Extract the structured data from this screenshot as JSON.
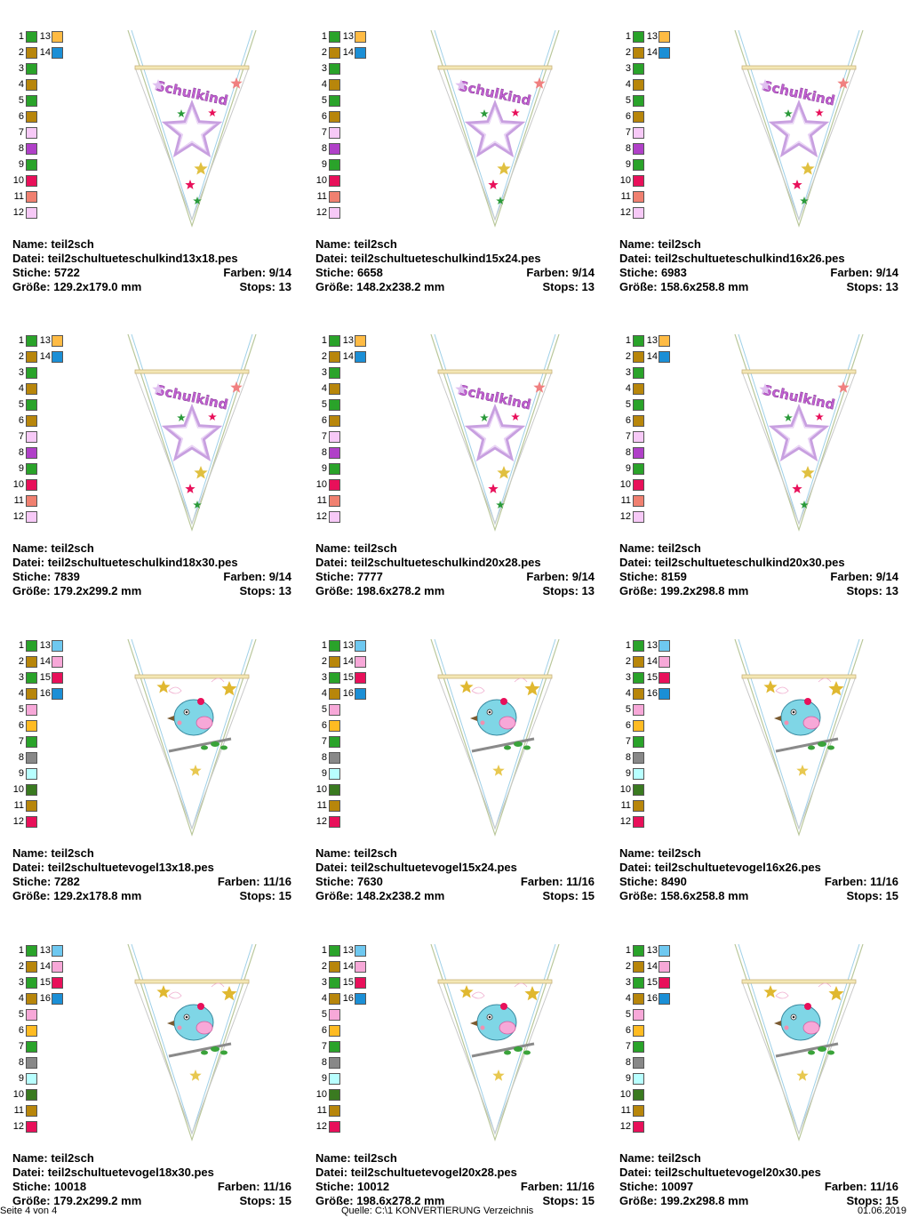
{
  "palettes": {
    "schulkind": {
      "left": [
        "#2aa32a",
        "#b8860b",
        "#2aa32a",
        "#b8860b",
        "#2aa32a",
        "#b8860b",
        "#f7c9f7",
        "#b040c8",
        "#2aa32a",
        "#e8105a",
        "#f08070",
        "#f7c9f7"
      ],
      "right": [
        "#ffbb44",
        "#1b8fd6"
      ]
    },
    "vogel": {
      "left": [
        "#2aa32a",
        "#b8860b",
        "#2aa32a",
        "#b8860b",
        "#f7a8d8",
        "#ffbb22",
        "#2aa32a",
        "#888888",
        "#b8ffff",
        "#3a7a20",
        "#b8860b",
        "#e8105a"
      ],
      "right": [
        "#6ec8f0",
        "#f7a8d8",
        "#e8105a",
        "#1b8fd6"
      ]
    }
  },
  "cards": [
    {
      "theme": "schulkind",
      "text": "Schulkind",
      "name": "Name: teil2sch",
      "file": "Datei: teil2schultueteschulkind13x18.pes",
      "stitches": "Stiche: 5722",
      "colors": "Farben: 9/14",
      "size": "Größe: 129.2x179.0 mm",
      "stops": "Stops: 13"
    },
    {
      "theme": "schulkind",
      "text": "Schulkind",
      "name": "Name: teil2sch",
      "file": "Datei: teil2schultueteschulkind15x24.pes",
      "stitches": "Stiche: 6658",
      "colors": "Farben: 9/14",
      "size": "Größe: 148.2x238.2 mm",
      "stops": "Stops: 13"
    },
    {
      "theme": "schulkind",
      "text": "Schulkind",
      "name": "Name: teil2sch",
      "file": "Datei: teil2schultueteschulkind16x26.pes",
      "stitches": "Stiche: 6983",
      "colors": "Farben: 9/14",
      "size": "Größe: 158.6x258.8 mm",
      "stops": "Stops: 13"
    },
    {
      "theme": "schulkind",
      "text": "Schulkind",
      "name": "Name: teil2sch",
      "file": "Datei: teil2schultueteschulkind18x30.pes",
      "stitches": "Stiche: 7839",
      "colors": "Farben: 9/14",
      "size": "Größe: 179.2x299.2 mm",
      "stops": "Stops: 13"
    },
    {
      "theme": "schulkind",
      "text": "Schulkind",
      "name": "Name: teil2sch",
      "file": "Datei: teil2schultueteschulkind20x28.pes",
      "stitches": "Stiche: 7777",
      "colors": "Farben: 9/14",
      "size": "Größe: 198.6x278.2 mm",
      "stops": "Stops: 13"
    },
    {
      "theme": "schulkind",
      "text": "Schulkind",
      "name": "Name: teil2sch",
      "file": "Datei: teil2schultueteschulkind20x30.pes",
      "stitches": "Stiche: 8159",
      "colors": "Farben: 9/14",
      "size": "Größe: 199.2x298.8 mm",
      "stops": "Stops: 13"
    },
    {
      "theme": "vogel",
      "text": "",
      "name": "Name: teil2sch",
      "file": "Datei: teil2schultuetevogel13x18.pes",
      "stitches": "Stiche: 7282",
      "colors": "Farben: 11/16",
      "size": "Größe: 129.2x178.8 mm",
      "stops": "Stops: 15"
    },
    {
      "theme": "vogel",
      "text": "",
      "name": "Name: teil2sch",
      "file": "Datei: teil2schultuetevogel15x24.pes",
      "stitches": "Stiche: 7630",
      "colors": "Farben: 11/16",
      "size": "Größe: 148.2x238.2 mm",
      "stops": "Stops: 15"
    },
    {
      "theme": "vogel",
      "text": "",
      "name": "Name: teil2sch",
      "file": "Datei: teil2schultuetevogel16x26.pes",
      "stitches": "Stiche: 8490",
      "colors": "Farben: 11/16",
      "size": "Größe: 158.6x258.8 mm",
      "stops": "Stops: 15"
    },
    {
      "theme": "vogel",
      "text": "",
      "name": "Name: teil2sch",
      "file": "Datei: teil2schultuetevogel18x30.pes",
      "stitches": "Stiche: 10018",
      "colors": "Farben: 11/16",
      "size": "Größe: 179.2x299.2 mm",
      "stops": "Stops: 15"
    },
    {
      "theme": "vogel",
      "text": "",
      "name": "Name: teil2sch",
      "file": "Datei: teil2schultuetevogel20x28.pes",
      "stitches": "Stiche: 10012",
      "colors": "Farben: 11/16",
      "size": "Größe: 198.6x278.2 mm",
      "stops": "Stops: 15"
    },
    {
      "theme": "vogel",
      "text": "",
      "name": "Name: teil2sch",
      "file": "Datei: teil2schultuetevogel20x30.pes",
      "stitches": "Stiche: 10097",
      "colors": "Farben: 11/16",
      "size": "Größe: 199.2x298.8 mm",
      "stops": "Stops: 15"
    }
  ],
  "footer": {
    "page": "Seite 4 von 4",
    "source": "Quelle: C:\\1 KONVERTIERUNG Verzeichnis",
    "date": "01.06.2019"
  }
}
